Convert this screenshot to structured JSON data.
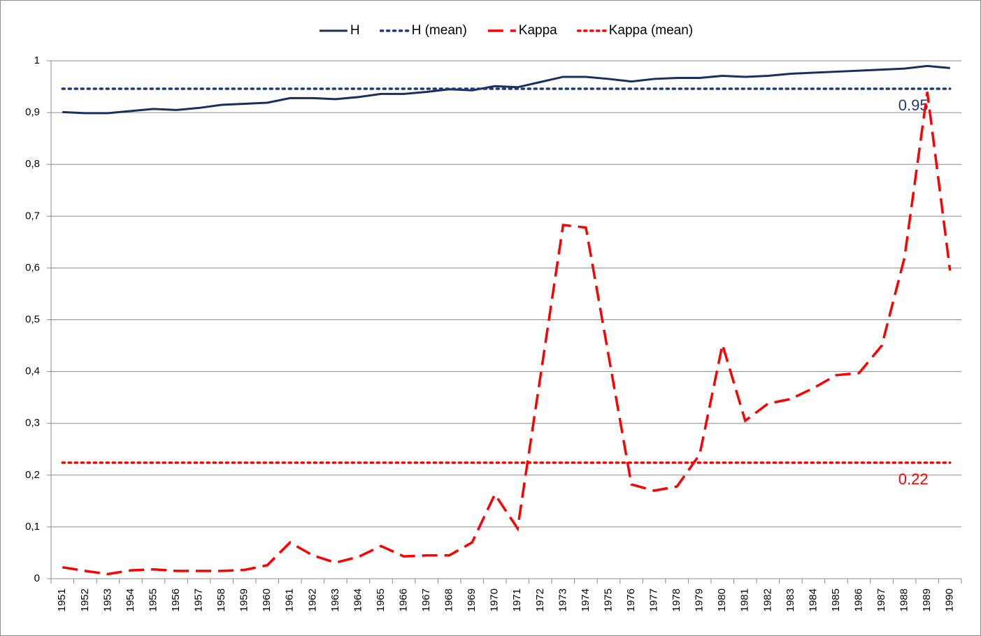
{
  "chart_data": {
    "type": "line",
    "categories": [
      "1951",
      "1952",
      "1953",
      "1954",
      "1955",
      "1956",
      "1957",
      "1958",
      "1959",
      "1960",
      "1961",
      "1962",
      "1963",
      "1964",
      "1965",
      "1966",
      "1967",
      "1968",
      "1969",
      "1970",
      "1971",
      "1972",
      "1973",
      "1974",
      "1975",
      "1976",
      "1977",
      "1978",
      "1979",
      "1980",
      "1981",
      "1982",
      "1983",
      "1984",
      "1985",
      "1986",
      "1987",
      "1988",
      "1989",
      "1990"
    ],
    "series": [
      {
        "name": "H",
        "color": "#1b2f5e",
        "dash": "solid",
        "values": [
          0.901,
          0.899,
          0.899,
          0.903,
          0.907,
          0.905,
          0.909,
          0.915,
          0.917,
          0.919,
          0.928,
          0.928,
          0.926,
          0.93,
          0.936,
          0.936,
          0.94,
          0.945,
          0.943,
          0.951,
          0.949,
          0.959,
          0.969,
          0.969,
          0.965,
          0.96,
          0.965,
          0.967,
          0.967,
          0.971,
          0.969,
          0.971,
          0.975,
          0.977,
          0.979,
          0.981,
          0.983,
          0.985,
          0.99,
          0.986
        ]
      },
      {
        "name": "H (mean)",
        "color": "#1f3a7a",
        "dash": "dotted",
        "annotation": "0.95",
        "values": [
          0.946,
          0.946,
          0.946,
          0.946,
          0.946,
          0.946,
          0.946,
          0.946,
          0.946,
          0.946,
          0.946,
          0.946,
          0.946,
          0.946,
          0.946,
          0.946,
          0.946,
          0.946,
          0.946,
          0.946,
          0.946,
          0.946,
          0.946,
          0.946,
          0.946,
          0.946,
          0.946,
          0.946,
          0.946,
          0.946,
          0.946,
          0.946,
          0.946,
          0.946,
          0.946,
          0.946,
          0.946,
          0.946,
          0.946,
          0.946
        ]
      },
      {
        "name": "Kappa",
        "color": "#ff0000",
        "dash": "dashed",
        "values": [
          0.022,
          0.015,
          0.009,
          0.016,
          0.018,
          0.015,
          0.015,
          0.015,
          0.017,
          0.026,
          0.07,
          0.045,
          0.031,
          0.042,
          0.063,
          0.043,
          0.045,
          0.045,
          0.07,
          0.163,
          0.097,
          0.39,
          0.683,
          0.678,
          0.43,
          0.182,
          0.17,
          0.178,
          0.24,
          0.452,
          0.305,
          0.338,
          0.347,
          0.368,
          0.393,
          0.397,
          0.45,
          0.62,
          0.94,
          0.595
        ]
      },
      {
        "name": "Kappa (mean)",
        "color": "#ff0000",
        "dash": "dotted",
        "annotation": "0.22",
        "values": [
          0.224,
          0.224,
          0.224,
          0.224,
          0.224,
          0.224,
          0.224,
          0.224,
          0.224,
          0.224,
          0.224,
          0.224,
          0.224,
          0.224,
          0.224,
          0.224,
          0.224,
          0.224,
          0.224,
          0.224,
          0.224,
          0.224,
          0.224,
          0.224,
          0.224,
          0.224,
          0.224,
          0.224,
          0.224,
          0.224,
          0.224,
          0.224,
          0.224,
          0.224,
          0.224,
          0.224,
          0.224,
          0.224,
          0.224,
          0.224
        ]
      }
    ],
    "ylim": [
      0,
      1
    ],
    "yticks": [
      0,
      {
        "value": 0.1,
        "label": "0,1"
      },
      {
        "value": 0.2,
        "label": "0,2"
      },
      {
        "value": 0.3,
        "label": "0,3"
      },
      {
        "value": 0.4,
        "label": "0,4"
      },
      {
        "value": 0.5,
        "label": "0,5"
      },
      {
        "value": 0.6,
        "label": "0,6"
      },
      {
        "value": 0.7,
        "label": "0,7"
      },
      {
        "value": 0.8,
        "label": "0,8"
      },
      {
        "value": 0.9,
        "label": "0,9"
      },
      1
    ],
    "grid": true,
    "legend": "top"
  }
}
